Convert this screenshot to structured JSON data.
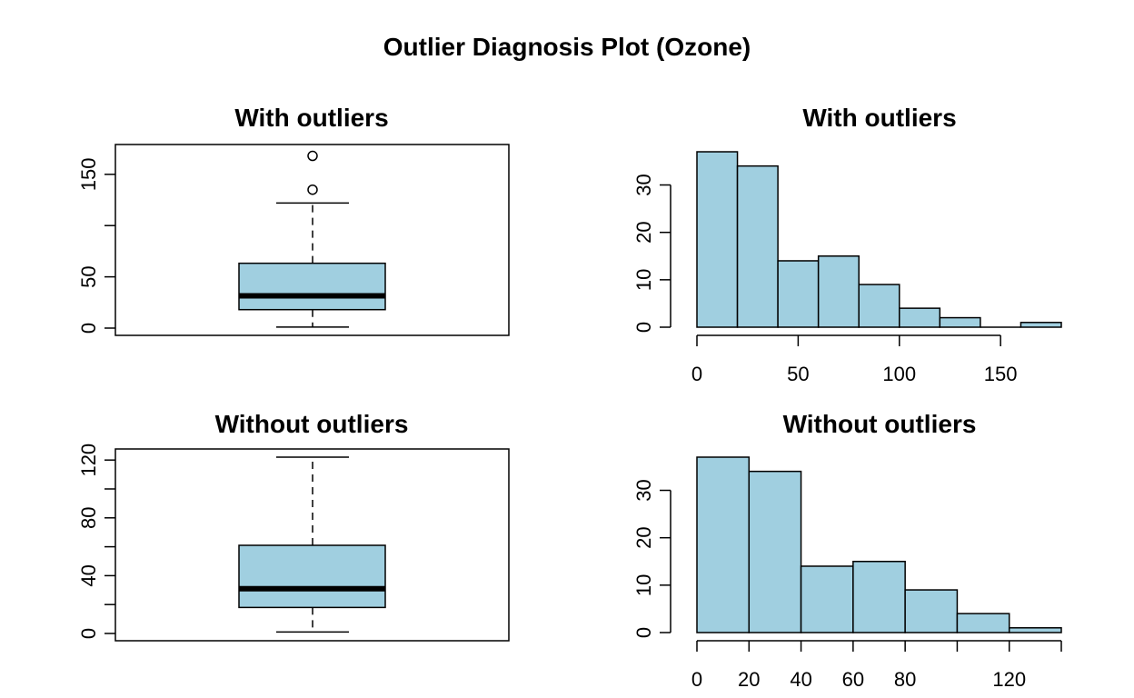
{
  "figure": {
    "title": "Outlier Diagnosis Plot (Ozone)"
  },
  "colors": {
    "fill": "#a0cfe0",
    "stroke": "#000000"
  },
  "chart_data": [
    {
      "type": "box",
      "id": "box-with",
      "title": "With outliers",
      "ylim": [
        0,
        172
      ],
      "yticks": [
        0,
        50,
        100,
        150
      ],
      "yticklabels": [
        "0",
        "50",
        "",
        "150"
      ],
      "stats": {
        "min": 1,
        "q1": 18,
        "median": 31.5,
        "q3": 63.25,
        "max": 122
      },
      "outliers": [
        135,
        168
      ]
    },
    {
      "type": "histogram",
      "id": "hist-with",
      "title": "With outliers",
      "xlim": [
        0,
        180
      ],
      "ylim": [
        0,
        37
      ],
      "xticks": [
        0,
        50,
        100,
        150
      ],
      "yticks": [
        0,
        10,
        20,
        30
      ],
      "bins": [
        0,
        20,
        40,
        60,
        80,
        100,
        120,
        140,
        160,
        180
      ],
      "counts": [
        37,
        34,
        14,
        15,
        9,
        4,
        2,
        0,
        1
      ]
    },
    {
      "type": "box",
      "id": "box-without",
      "title": "Without outliers",
      "ylim": [
        0,
        122
      ],
      "yticks": [
        0,
        20,
        40,
        60,
        80,
        100,
        120
      ],
      "yticklabels": [
        "0",
        "",
        "40",
        "",
        "80",
        "",
        "120"
      ],
      "stats": {
        "min": 1,
        "q1": 18,
        "median": 31,
        "q3": 61,
        "max": 122
      },
      "outliers": []
    },
    {
      "type": "histogram",
      "id": "hist-without",
      "title": "Without outliers",
      "xlim": [
        0,
        140
      ],
      "ylim": [
        0,
        37
      ],
      "xticks": [
        0,
        20,
        40,
        60,
        80,
        100,
        120,
        140
      ],
      "xticklabels": [
        "0",
        "20",
        "40",
        "60",
        "80",
        "",
        "120",
        ""
      ],
      "yticks": [
        0,
        10,
        20,
        30
      ],
      "bins": [
        0,
        20,
        40,
        60,
        80,
        100,
        120,
        140
      ],
      "counts": [
        37,
        34,
        14,
        15,
        9,
        4,
        1
      ]
    }
  ]
}
